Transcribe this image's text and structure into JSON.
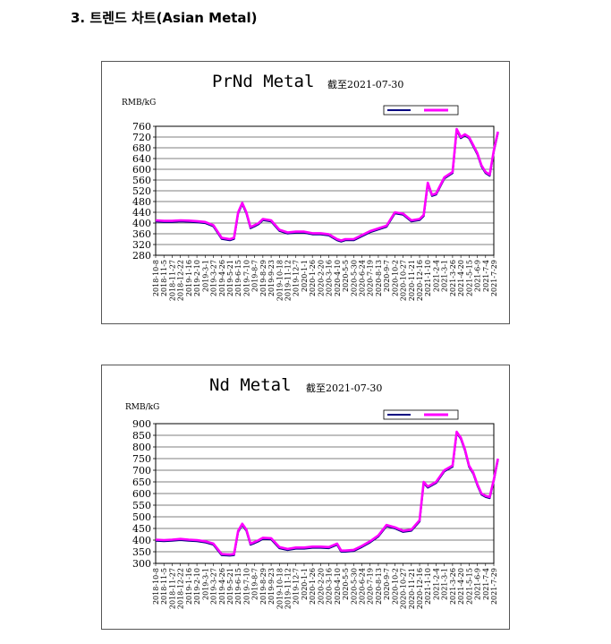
{
  "page": {
    "heading": "3. 트렌드 차트(Asian Metal)"
  },
  "chart_data": [
    {
      "type": "line",
      "title": "PrNd Metal",
      "subtitle": "截至2021-07-30",
      "ylabel": "RMB/kG",
      "ylim": [
        280,
        760
      ],
      "yticks": [
        280,
        320,
        360,
        400,
        440,
        480,
        520,
        560,
        600,
        640,
        680,
        720,
        760
      ],
      "grid": true,
      "legend": "top-right",
      "x_tick_labels": [
        "2018-10-8",
        "2018-11-5",
        "2018-11-27",
        "2018-12-22",
        "2019-1-16",
        "2019-2-10",
        "2019-3-1",
        "2019-3-27",
        "2019-4-26",
        "2019-5-21",
        "2019-6-15",
        "2019-7-10",
        "2019-8-7",
        "2019-8-29",
        "2019-9-23",
        "2019-10-18",
        "2019-11-12",
        "2019-12-7",
        "2020-1-1",
        "2020-1-26",
        "2020-2-20",
        "2020-3-16",
        "2020-4-10",
        "2020-5-5",
        "2020-5-30",
        "2020-6-24",
        "2020-7-19",
        "2020-8-13",
        "2020-9-7",
        "2020-10-2",
        "2020-10-27",
        "2020-11-21",
        "2020-12-16",
        "2021-1-10",
        "2021-2-4",
        "2021-3-1",
        "2021-3-26",
        "2021-4-20",
        "2021-5-15",
        "2021-6-9",
        "2021-7-4",
        "2021-7-29"
      ],
      "series": [
        {
          "name": "",
          "color": "#ff00ff",
          "points": [
            [
              0,
              410
            ],
            [
              1,
              408
            ],
            [
              2,
              408
            ],
            [
              3,
              410
            ],
            [
              4,
              409
            ],
            [
              5,
              407
            ],
            [
              6,
              404
            ],
            [
              7,
              392
            ],
            [
              8,
              345
            ],
            [
              9,
              340
            ],
            [
              9.5,
              345
            ],
            [
              10,
              440
            ],
            [
              10.5,
              475
            ],
            [
              11,
              440
            ],
            [
              11.5,
              385
            ],
            [
              12,
              392
            ],
            [
              12.5,
              400
            ],
            [
              13,
              415
            ],
            [
              14,
              410
            ],
            [
              15,
              375
            ],
            [
              16,
              365
            ],
            [
              17,
              368
            ],
            [
              18,
              368
            ],
            [
              19,
              362
            ],
            [
              20,
              362
            ],
            [
              21,
              358
            ],
            [
              22,
              340
            ],
            [
              22.5,
              335
            ],
            [
              23,
              340
            ],
            [
              24,
              340
            ],
            [
              25,
              355
            ],
            [
              26,
              370
            ],
            [
              27,
              380
            ],
            [
              28,
              390
            ],
            [
              29,
              440
            ],
            [
              30,
              435
            ],
            [
              31,
              410
            ],
            [
              32,
              415
            ],
            [
              32.5,
              430
            ],
            [
              33,
              550
            ],
            [
              33.5,
              505
            ],
            [
              34,
              510
            ],
            [
              35,
              570
            ],
            [
              36,
              590
            ],
            [
              36.5,
              750
            ],
            [
              37,
              720
            ],
            [
              37.5,
              730
            ],
            [
              38,
              720
            ],
            [
              38.5,
              690
            ],
            [
              39,
              660
            ],
            [
              39.5,
              615
            ],
            [
              40,
              590
            ],
            [
              40.5,
              580
            ],
            [
              41,
              670
            ],
            [
              41.5,
              740
            ]
          ]
        }
      ]
    },
    {
      "type": "line",
      "title": "Nd Metal",
      "subtitle": "截至2021-07-30",
      "ylabel": "RMB/kG",
      "ylim": [
        300,
        900
      ],
      "yticks": [
        300,
        350,
        400,
        450,
        500,
        550,
        600,
        650,
        700,
        750,
        800,
        850,
        900
      ],
      "grid": true,
      "legend": "top-right",
      "x_tick_labels": [
        "2018-10-8",
        "2018-11-5",
        "2018-11-27",
        "2018-12-22",
        "2019-1-16",
        "2019-2-10",
        "2019-3-1",
        "2019-3-27",
        "2019-4-26",
        "2019-5-21",
        "2019-6-15",
        "2019-7-10",
        "2019-8-7",
        "2019-8-29",
        "2019-9-23",
        "2019-10-18",
        "2019-11-12",
        "2019-12-7",
        "2020-1-1",
        "2020-1-26",
        "2020-2-20",
        "2020-3-16",
        "2020-4-10",
        "2020-5-5",
        "2020-5-30",
        "2020-6-24",
        "2020-7-19",
        "2020-8-13",
        "2020-9-7",
        "2020-10-2",
        "2020-10-27",
        "2020-11-21",
        "2020-12-16",
        "2021-1-10",
        "2021-2-4",
        "2021-3-1",
        "2021-3-26",
        "2021-4-20",
        "2021-5-15",
        "2021-6-9",
        "2021-7-4",
        "2021-7-29"
      ],
      "series": [
        {
          "name": "",
          "color": "#ff00ff",
          "points": [
            [
              0,
              402
            ],
            [
              1,
              400
            ],
            [
              2,
              402
            ],
            [
              3,
              405
            ],
            [
              4,
              402
            ],
            [
              5,
              400
            ],
            [
              6,
              395
            ],
            [
              7,
              385
            ],
            [
              8,
              340
            ],
            [
              9,
              338
            ],
            [
              9.5,
              340
            ],
            [
              10,
              440
            ],
            [
              10.5,
              470
            ],
            [
              11,
              445
            ],
            [
              11.5,
              385
            ],
            [
              12,
              392
            ],
            [
              12.5,
              400
            ],
            [
              13,
              410
            ],
            [
              14,
              408
            ],
            [
              15,
              370
            ],
            [
              16,
              362
            ],
            [
              17,
              368
            ],
            [
              18,
              368
            ],
            [
              19,
              372
            ],
            [
              20,
              372
            ],
            [
              21,
              370
            ],
            [
              22,
              385
            ],
            [
              22.5,
              355
            ],
            [
              23,
              355
            ],
            [
              24,
              358
            ],
            [
              25,
              375
            ],
            [
              26,
              395
            ],
            [
              27,
              420
            ],
            [
              28,
              465
            ],
            [
              29,
              455
            ],
            [
              30,
              440
            ],
            [
              31,
              445
            ],
            [
              32,
              485
            ],
            [
              32.5,
              650
            ],
            [
              33,
              630
            ],
            [
              34,
              650
            ],
            [
              35,
              700
            ],
            [
              36,
              720
            ],
            [
              36.5,
              865
            ],
            [
              37,
              840
            ],
            [
              37.5,
              790
            ],
            [
              38,
              720
            ],
            [
              38.5,
              690
            ],
            [
              39,
              640
            ],
            [
              39.5,
              600
            ],
            [
              40,
              590
            ],
            [
              40.5,
              585
            ],
            [
              41,
              660
            ],
            [
              41.5,
              750
            ]
          ]
        }
      ]
    }
  ]
}
